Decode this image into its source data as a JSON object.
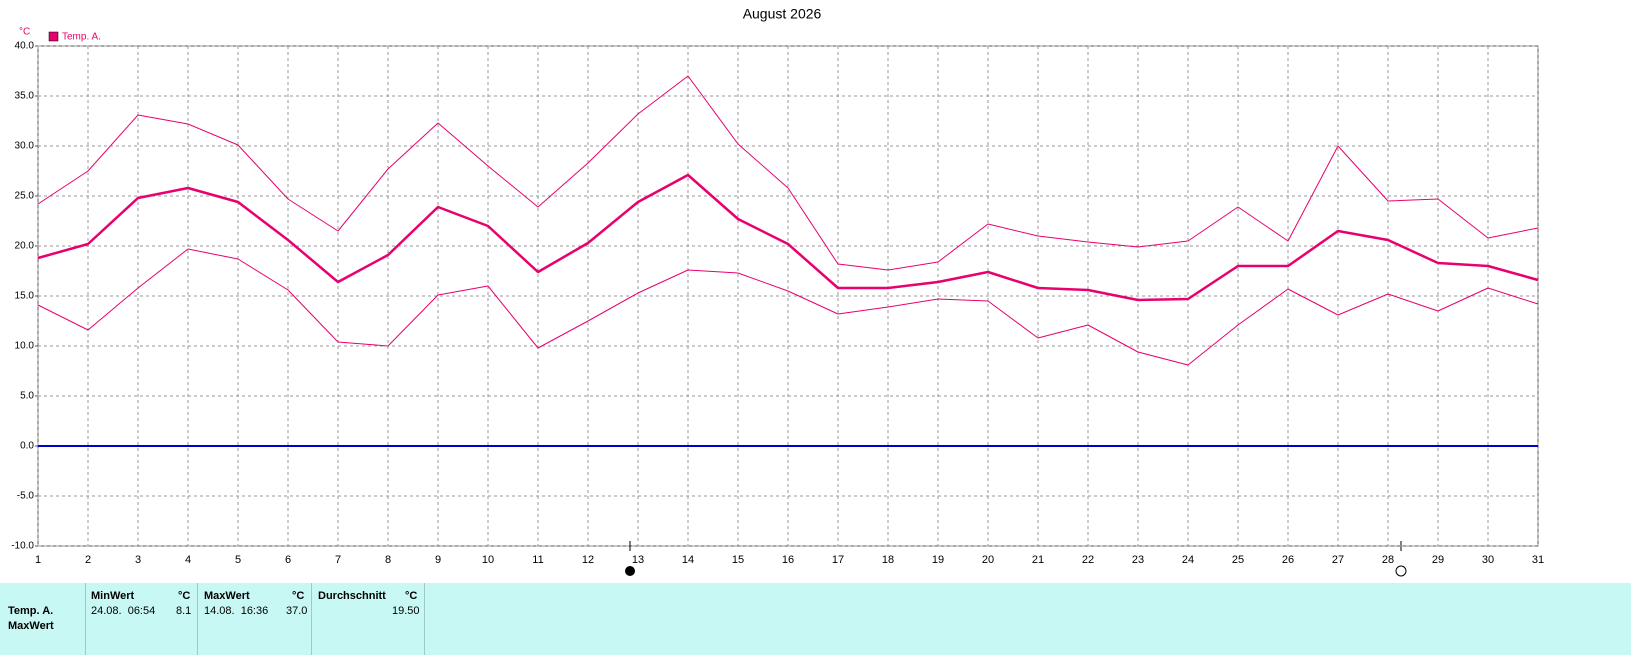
{
  "chart_data": {
    "type": "line",
    "title": "August 2026",
    "y_unit": "°C",
    "x": [
      1,
      2,
      3,
      4,
      5,
      6,
      7,
      8,
      9,
      10,
      11,
      12,
      13,
      14,
      15,
      16,
      17,
      18,
      19,
      20,
      21,
      22,
      23,
      24,
      25,
      26,
      27,
      28,
      29,
      30,
      31
    ],
    "xlim": [
      1,
      31
    ],
    "xticks": [
      1,
      2,
      3,
      4,
      5,
      6,
      7,
      8,
      9,
      10,
      11,
      12,
      13,
      14,
      15,
      16,
      17,
      18,
      19,
      20,
      21,
      22,
      23,
      24,
      25,
      26,
      27,
      28,
      29,
      30,
      31
    ],
    "ylim": [
      -10,
      40
    ],
    "yticks": [
      {
        "value": -10,
        "label": "-10.0"
      },
      {
        "value": -5,
        "label": "-5.0"
      },
      {
        "value": 0,
        "label": "0.0"
      },
      {
        "value": 5,
        "label": "5.0"
      },
      {
        "value": 10,
        "label": "10.0"
      },
      {
        "value": 15,
        "label": "15.0"
      },
      {
        "value": 20,
        "label": "20.0"
      },
      {
        "value": 25,
        "label": "25.0"
      },
      {
        "value": 30,
        "label": "30.0"
      },
      {
        "value": 35,
        "label": "35.0"
      },
      {
        "value": 40,
        "label": "40.0"
      }
    ],
    "grid": true,
    "zero_line_color": "#0000cc",
    "legend": "top-left",
    "series": [
      {
        "name": "Temp. A.",
        "color": "#e8006e",
        "values": [
          18.8,
          20.2,
          24.8,
          25.8,
          24.4,
          20.6,
          16.4,
          19.1,
          23.9,
          22.0,
          17.4,
          20.3,
          24.4,
          27.1,
          22.7,
          20.2,
          15.8,
          15.8,
          16.4,
          17.4,
          15.8,
          15.6,
          14.6,
          14.7,
          18.0,
          18.0,
          21.5,
          20.6,
          18.3,
          18.0,
          16.6
        ],
        "high": [
          24.2,
          27.5,
          33.1,
          32.2,
          30.1,
          24.7,
          21.5,
          27.7,
          32.3,
          28.0,
          23.9,
          28.3,
          33.2,
          37.0,
          30.2,
          25.8,
          18.2,
          17.6,
          18.4,
          22.2,
          21.0,
          20.4,
          19.9,
          20.5,
          23.9,
          20.5,
          30.0,
          24.5,
          24.7,
          20.8,
          21.8
        ],
        "low": [
          14.1,
          11.6,
          15.8,
          19.7,
          18.7,
          15.6,
          10.4,
          10.0,
          15.1,
          16.0,
          9.8,
          12.5,
          15.3,
          17.6,
          17.3,
          15.5,
          13.2,
          13.9,
          14.7,
          14.5,
          10.8,
          12.1,
          9.4,
          8.1,
          12.1,
          15.7,
          13.1,
          15.2,
          13.5,
          15.8,
          14.2
        ]
      }
    ]
  },
  "stats_table": {
    "row_labels": [
      "Temp. A.",
      "MaxWert"
    ],
    "headers": [
      "MinWert",
      "°C",
      "MaxWert",
      "°C",
      "Durchschnitt",
      "°C"
    ],
    "row": [
      "24.08.  06:54",
      "8.1",
      "14.08.  16:36",
      "37.0",
      "19.50"
    ]
  }
}
